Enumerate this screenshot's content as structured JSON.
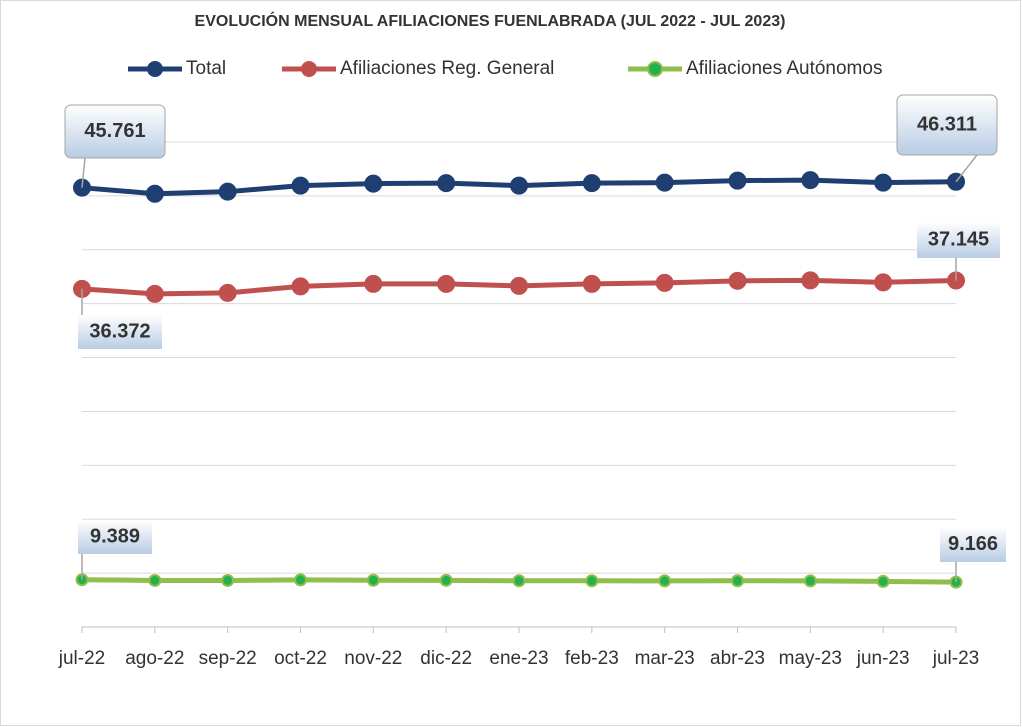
{
  "chart_data": {
    "type": "line",
    "title": "EVOLUCIÓN MENSUAL AFILIACIONES FUENLABRADA (JUL 2022 - JUL 2023)",
    "categories": [
      "jul-22",
      "ago-22",
      "sep-22",
      "oct-22",
      "nov-22",
      "dic-22",
      "ene-23",
      "feb-23",
      "mar-23",
      "abr-23",
      "may-23",
      "jun-23",
      "jul-23"
    ],
    "series": [
      {
        "name": "Total",
        "color": "#1f3f73",
        "values": [
          45761,
          45200,
          45390,
          45950,
          46140,
          46180,
          45950,
          46180,
          46230,
          46420,
          46460,
          46230,
          46311
        ],
        "value_labels": [
          "45.761",
          null,
          null,
          null,
          null,
          null,
          null,
          null,
          null,
          null,
          null,
          null,
          "46.311"
        ]
      },
      {
        "name": "Afiliaciones Reg. General",
        "color": "#c0504d",
        "values": [
          36372,
          35910,
          36000,
          36600,
          36840,
          36840,
          36650,
          36840,
          36930,
          37120,
          37160,
          36980,
          37145
        ],
        "value_labels": [
          "36.372",
          null,
          null,
          null,
          null,
          null,
          null,
          null,
          null,
          null,
          null,
          null,
          "37.145"
        ]
      },
      {
        "name": "Afiliaciones Autónomos",
        "color": "#8fbe4a",
        "values": [
          9389,
          9320,
          9320,
          9370,
          9340,
          9330,
          9290,
          9290,
          9280,
          9290,
          9280,
          9230,
          9166
        ],
        "value_labels": [
          "9.389",
          null,
          null,
          null,
          null,
          null,
          null,
          null,
          null,
          null,
          null,
          null,
          "9.166"
        ]
      }
    ],
    "ylim": [
      5000,
      50000
    ],
    "yticks": [
      5000,
      10000,
      15000,
      20000,
      25000,
      30000,
      35000,
      40000,
      45000,
      50000
    ],
    "grid": true,
    "legend": "top"
  }
}
